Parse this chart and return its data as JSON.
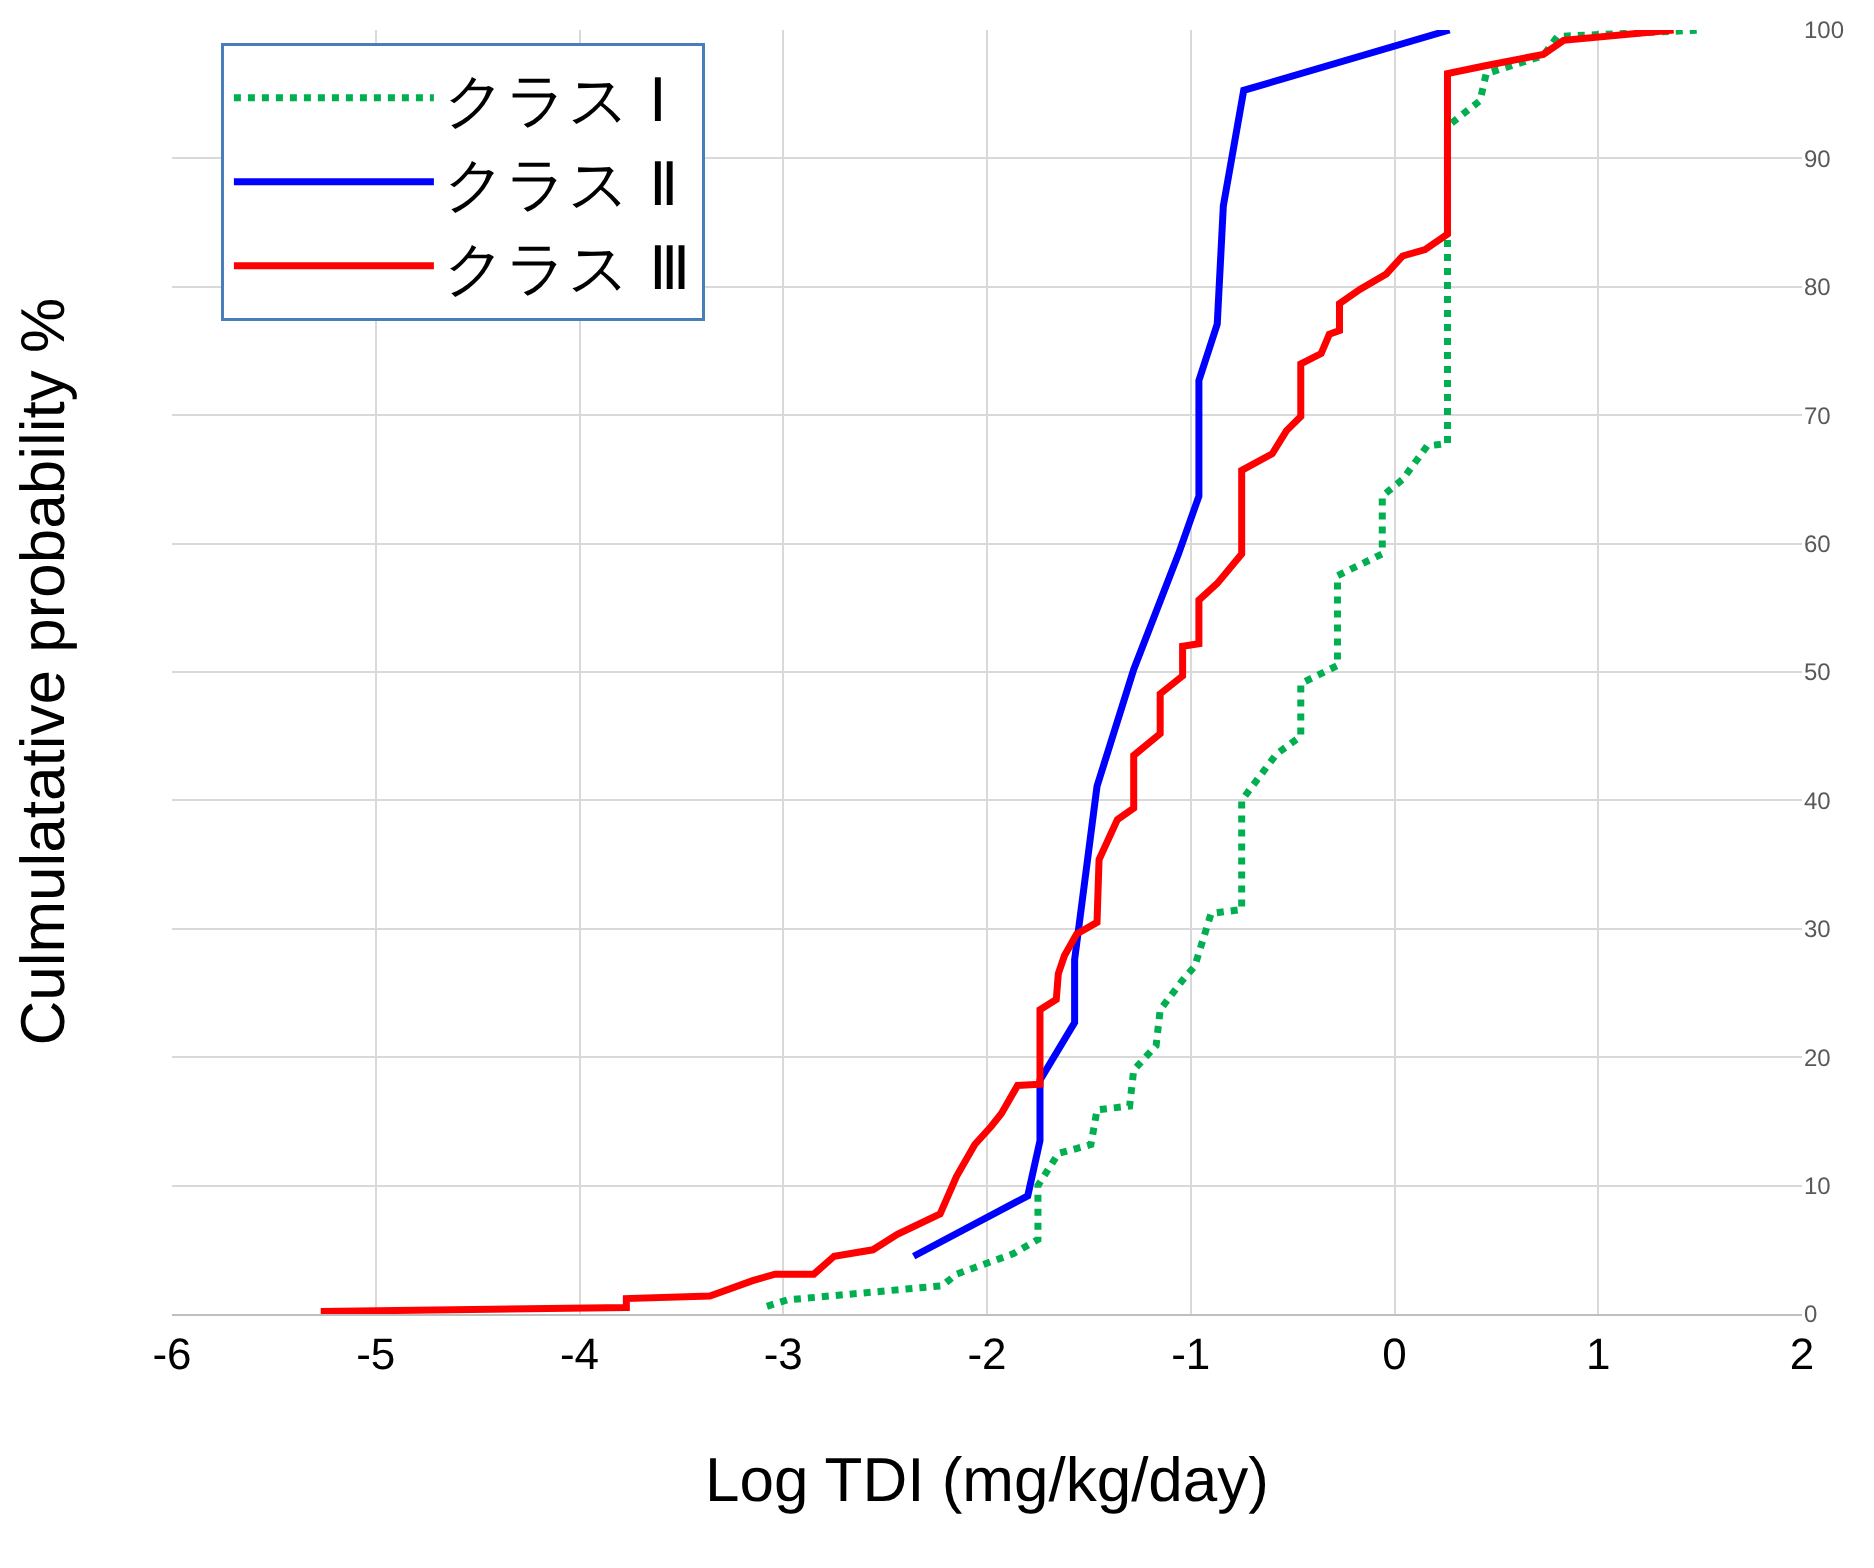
{
  "chart_data": {
    "type": "line",
    "xlabel": "Log TDI (mg/kg/day)",
    "ylabel": "Culmulatative probability %",
    "xlim": [
      -6,
      2
    ],
    "xticks": [
      -6,
      -5,
      -4,
      -3,
      -2,
      -1,
      0,
      1,
      2
    ],
    "ylim": [
      0,
      100
    ],
    "yticks": [
      0,
      10,
      20,
      30,
      40,
      50,
      60,
      70,
      80,
      90,
      100
    ],
    "grid": true,
    "legend": "top left",
    "marker": "none",
    "series": [
      {
        "name": "クラス Ⅰ",
        "color": "#00b050",
        "line_style": "dotted",
        "x": [
          -3.08,
          -2.98,
          -2.22,
          -2.15,
          -1.87,
          -1.75,
          -1.75,
          -1.65,
          -1.49,
          -1.46,
          -1.3,
          -1.28,
          -1.17,
          -1.15,
          -1.04,
          -0.98,
          -0.9,
          -0.75,
          -0.75,
          -0.58,
          -0.46,
          -0.46,
          -0.28,
          -0.28,
          -0.06,
          -0.06,
          0.04,
          0.16,
          0.26,
          0.26,
          0.42,
          0.45,
          0.73,
          0.8,
          1.51
        ],
        "values": [
          0.6,
          1.1,
          2.2,
          3.1,
          4.7,
          5.8,
          10,
          12.5,
          13.2,
          15.9,
          16.2,
          19,
          20.9,
          23.7,
          26,
          27.1,
          31.2,
          31.5,
          40,
          43.6,
          45,
          49.1,
          50.5,
          57.5,
          59.2,
          63.7,
          65,
          67.6,
          67.8,
          92.5,
          94.5,
          96.6,
          98,
          99.5,
          100
        ]
      },
      {
        "name": "クラス Ⅱ",
        "color": "#0000ff",
        "line_style": "solid",
        "x": [
          -2.36,
          -1.8,
          -1.74,
          -1.74,
          -1.57,
          -1.57,
          -1.46,
          -1.28,
          -1.06,
          -0.96,
          -0.96,
          -0.87,
          -0.84,
          -0.74,
          0.27
        ],
        "values": [
          4.5,
          9.2,
          13.5,
          18.2,
          22.7,
          27.6,
          41.1,
          50.2,
          59.2,
          63.7,
          72.7,
          77.1,
          86.3,
          95.3,
          100
        ]
      },
      {
        "name": "クラス Ⅲ",
        "color": "#ff0000",
        "line_style": "solid",
        "x": [
          -5.27,
          -3.77,
          -3.77,
          -3.36,
          -3.15,
          -3.04,
          -2.85,
          -2.75,
          -2.56,
          -2.44,
          -2.23,
          -2.15,
          -2.06,
          -1.98,
          -1.93,
          -1.85,
          -1.74,
          -1.74,
          -1.66,
          -1.65,
          -1.62,
          -1.56,
          -1.46,
          -1.45,
          -1.36,
          -1.28,
          -1.28,
          -1.15,
          -1.15,
          -1.04,
          -1.04,
          -0.96,
          -0.96,
          -0.87,
          -0.75,
          -0.75,
          -0.6,
          -0.53,
          -0.46,
          -0.46,
          -0.36,
          -0.32,
          -0.27,
          -0.27,
          -0.17,
          -0.04,
          0.04,
          0.15,
          0.26,
          0.26,
          0.44,
          0.73,
          0.83,
          1.37
        ],
        "values": [
          0.2,
          0.5,
          1.2,
          1.4,
          2.6,
          3.1,
          3.1,
          4.5,
          5,
          6.2,
          7.8,
          10.7,
          13.2,
          14.6,
          15.6,
          17.8,
          17.9,
          23.7,
          24.5,
          26.5,
          27.9,
          29.6,
          30.5,
          35.4,
          38.5,
          39.4,
          43.5,
          45.2,
          48.3,
          49.7,
          52,
          52.2,
          55.6,
          56.9,
          59.2,
          65.7,
          67,
          68.8,
          69.9,
          74,
          74.8,
          76.3,
          76.6,
          78.7,
          79.8,
          81,
          82.4,
          82.9,
          84.1,
          96.6,
          97.2,
          98.1,
          99.2,
          100
        ]
      }
    ]
  }
}
